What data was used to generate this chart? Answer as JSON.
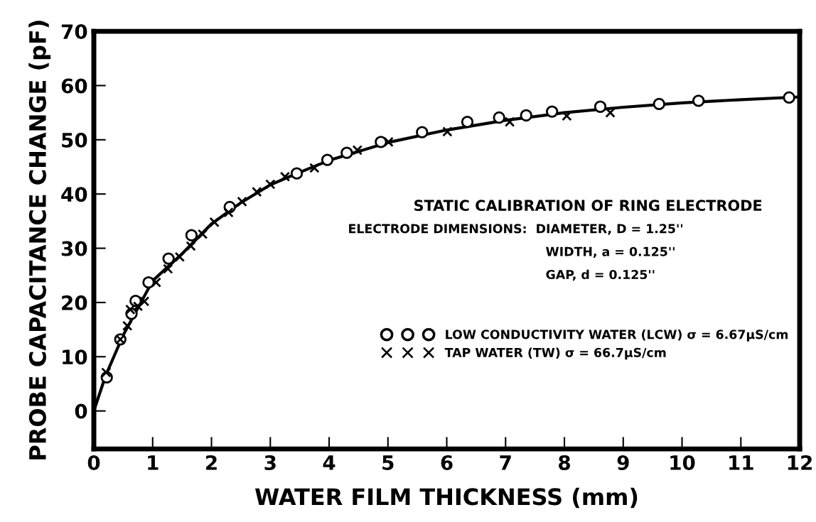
{
  "chart_data": {
    "type": "scatter",
    "xlabel": "WATER FILM THICKNESS (mm)",
    "ylabel": "PROBE CAPACITANCE CHANGE (pF)",
    "xlim": [
      0,
      12
    ],
    "xticks": [
      0,
      1,
      2,
      3,
      4,
      5,
      6,
      7,
      8,
      9,
      10,
      11,
      12
    ],
    "ylim": [
      -7,
      70
    ],
    "yticks": [
      0,
      10,
      20,
      30,
      40,
      50,
      60,
      70
    ],
    "grid": false,
    "legend": "right",
    "annotations": [
      "STATIC CALIBRATION OF RING ELECTRODE",
      "ELECTRODE DIMENSIONS:  DIAMETER, D = 1.25''",
      "WIDTH, a = 0.125''",
      "GAP, d = 0.125''"
    ],
    "series": [
      {
        "type": "line",
        "color": "#000000",
        "line_style": "solid",
        "marker": "none",
        "x": [
          0,
          0.2,
          0.5,
          1,
          1.5,
          2,
          2.5,
          3,
          3.5,
          4,
          5,
          6,
          7,
          8,
          9,
          10,
          11,
          12
        ],
        "values": [
          0,
          6.5,
          14,
          24,
          29,
          34.5,
          38.4,
          41.7,
          44,
          46.2,
          49.5,
          51.8,
          53.6,
          55,
          56,
          56.8,
          57.4,
          57.9
        ]
      },
      {
        "name": "LOW CONDUCTIVITY WATER (LCW) σ = 6.67μS/cm",
        "color": "#000000",
        "marker": "circle",
        "x": [
          0.22,
          0.45,
          0.64,
          0.71,
          0.93,
          1.27,
          1.66,
          2.31,
          3.45,
          3.97,
          4.3,
          4.88,
          5.58,
          6.35,
          6.89,
          7.35,
          7.79,
          8.61,
          9.61,
          10.28,
          11.82
        ],
        "values": [
          6.2,
          13.2,
          17.9,
          20.3,
          23.7,
          28.1,
          32.4,
          37.6,
          43.8,
          46.3,
          47.6,
          49.6,
          51.4,
          53.3,
          54.1,
          54.5,
          55.2,
          56.1,
          56.6,
          57.2,
          57.8
        ]
      },
      {
        "name": "TAP WATER (TW) σ = 66.7μS/cm",
        "color": "#000000",
        "marker": "cross",
        "x": [
          0.21,
          0.45,
          0.57,
          0.62,
          0.75,
          0.86,
          1.06,
          1.26,
          1.46,
          1.65,
          1.85,
          2.05,
          2.29,
          2.52,
          2.77,
          3.0,
          3.25,
          3.75,
          4.48,
          5.01,
          6.01,
          7.07,
          8.04,
          8.78
        ],
        "values": [
          7.1,
          13.2,
          15.7,
          18.7,
          19.3,
          20.2,
          23.7,
          26.2,
          28.4,
          30.4,
          32.6,
          34.8,
          36.6,
          38.6,
          40.4,
          41.8,
          43.2,
          44.8,
          48.1,
          49.6,
          51.5,
          53.3,
          54.4,
          55.0
        ]
      }
    ]
  }
}
